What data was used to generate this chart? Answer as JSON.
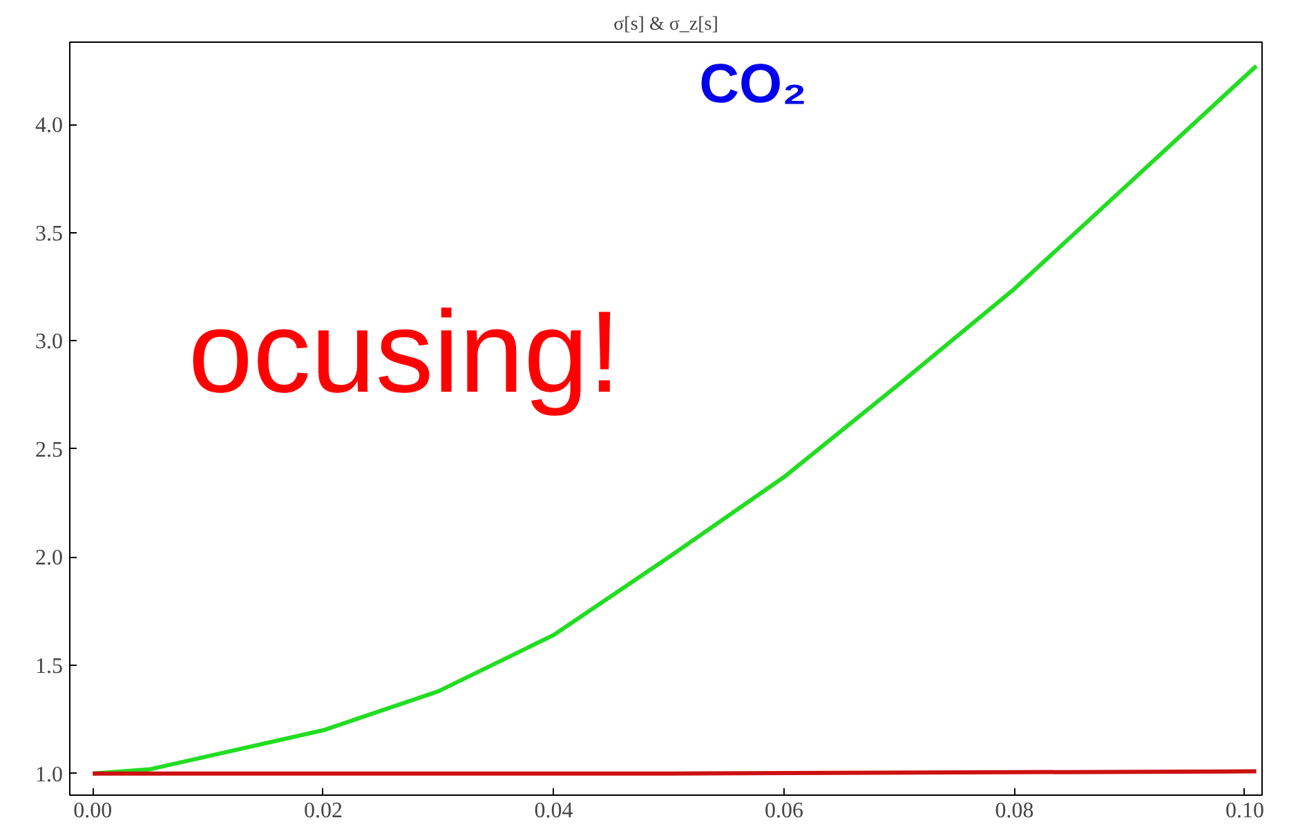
{
  "chart_data": {
    "type": "line",
    "title": "σ[s] & σ_z[s]",
    "annotations": [
      "CO₂",
      "ocusing!"
    ],
    "series": [
      {
        "color": "#22dd22",
        "x": [
          0,
          0.005,
          0.01,
          0.02,
          0.03,
          0.04,
          0.05,
          0.06,
          0.07,
          0.08,
          0.09,
          0.101
        ],
        "values": [
          1.0,
          1.02,
          1.08,
          1.2,
          1.38,
          1.64,
          2.0,
          2.37,
          2.8,
          3.24,
          3.73,
          4.27
        ]
      },
      {
        "color": "#cc1111",
        "x": [
          0,
          0.05,
          0.101
        ],
        "values": [
          1.0,
          1.0,
          1.01
        ]
      }
    ],
    "xlim": [
      -0.002,
      0.1015
    ],
    "ylim": [
      0.9,
      4.38
    ],
    "xticks": [
      {
        "value": 0,
        "label": "0.00"
      },
      {
        "value": 0.02,
        "label": "0.02"
      },
      {
        "value": 0.04,
        "label": "0.04"
      },
      {
        "value": 0.06,
        "label": "0.06"
      },
      {
        "value": 0.08,
        "label": "0.08"
      },
      {
        "value": 0.1,
        "label": "0.10"
      }
    ],
    "yticks": [
      {
        "value": 1,
        "label": "1.0"
      },
      {
        "value": 1.5,
        "label": "1.5"
      },
      {
        "value": 2,
        "label": "2.0"
      },
      {
        "value": 2.5,
        "label": "2.5"
      },
      {
        "value": 3,
        "label": "3.0"
      },
      {
        "value": 3.5,
        "label": "3.5"
      },
      {
        "value": 4,
        "label": "4.0"
      }
    ],
    "grid": false,
    "marker": "none",
    "line_style": "solid"
  }
}
